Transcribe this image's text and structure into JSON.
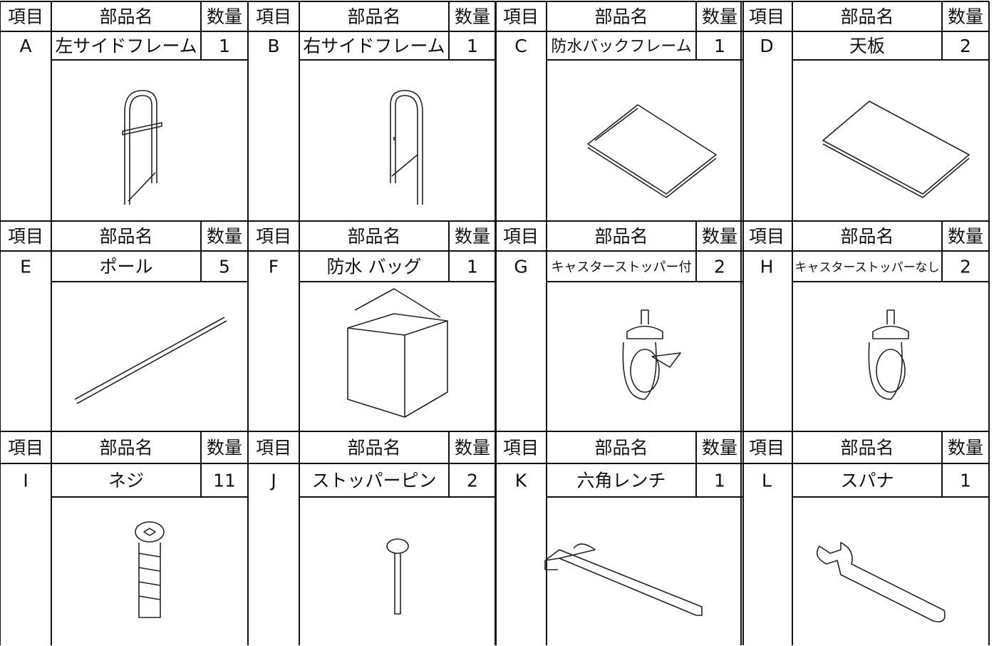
{
  "header": {
    "item": "項目",
    "name": "部品名",
    "qty": "数量"
  },
  "parts": [
    {
      "id": "A",
      "name": "左サイドフレーム",
      "qty": 1
    },
    {
      "id": "B",
      "name": "右サイドフレーム",
      "qty": 1
    },
    {
      "id": "C",
      "name": "防水バックフレーム",
      "qty": 1
    },
    {
      "id": "D",
      "name": "天板",
      "qty": 2
    },
    {
      "id": "E",
      "name": "ポール",
      "qty": 5
    },
    {
      "id": "F",
      "name": "防水 バッグ",
      "qty": 1
    },
    {
      "id": "G",
      "name": "キャスターストッパー付",
      "qty": 2
    },
    {
      "id": "H",
      "name": "キャスターストッパーなし",
      "qty": 2
    },
    {
      "id": "I",
      "name": "ネジ",
      "qty": 11
    },
    {
      "id": "J",
      "name": "ストッパーピン",
      "qty": 2
    },
    {
      "id": "K",
      "name": "六角レンチ",
      "qty": 1
    },
    {
      "id": "L",
      "name": "スパナ",
      "qty": 1
    }
  ]
}
